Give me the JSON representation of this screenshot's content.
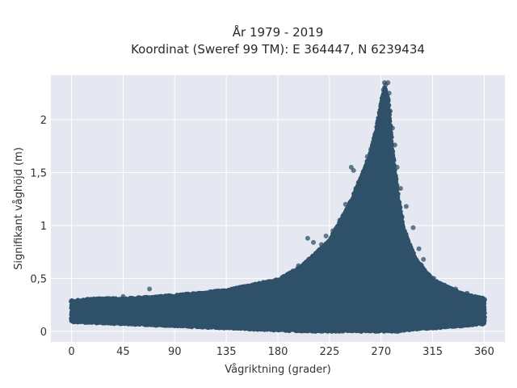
{
  "chart_data": {
    "type": "scatter",
    "title": "År 1979 - 2019",
    "subtitle": "Koordinat (Sweref 99 TM): E 364447, N 6239434",
    "xlabel": "Vågriktning (grader)",
    "ylabel": "Signifikant våghöjd (m)",
    "xlim": [
      -18,
      378
    ],
    "ylim": [
      -0.1,
      2.42
    ],
    "xticks": [
      0,
      45,
      90,
      135,
      180,
      225,
      270,
      315,
      360
    ],
    "xtick_labels": [
      "0",
      "45",
      "90",
      "135",
      "180",
      "225",
      "270",
      "315",
      "360"
    ],
    "yticks": [
      0,
      0.5,
      1,
      1.5,
      2
    ],
    "ytick_labels": [
      "0",
      "0,5",
      "1",
      "1,5",
      "2"
    ],
    "grid": true,
    "marker_color": "#2f5169",
    "background_color": "#e5e8f0",
    "series": [
      {
        "name": "",
        "envelope": {
          "x": [
            0,
            20,
            45,
            90,
            135,
            180,
            200,
            225,
            245,
            260,
            266,
            270,
            273,
            276,
            280,
            285,
            290,
            300,
            315,
            340,
            360
          ],
          "y_low": [
            0.1,
            0.09,
            0.08,
            0.06,
            0.04,
            0.02,
            0.01,
            0.01,
            0.01,
            0.01,
            0.01,
            0.01,
            0.01,
            0.01,
            0.01,
            0.01,
            0.02,
            0.03,
            0.04,
            0.06,
            0.08
          ],
          "y_high": [
            0.28,
            0.3,
            0.3,
            0.33,
            0.38,
            0.48,
            0.6,
            0.85,
            1.25,
            1.65,
            1.9,
            2.15,
            2.3,
            2.2,
            1.7,
            1.25,
            0.95,
            0.68,
            0.48,
            0.35,
            0.3
          ]
        },
        "points": [
          [
            0,
            0.28
          ],
          [
            3,
            0.26
          ],
          [
            20,
            0.3
          ],
          [
            36,
            0.31
          ],
          [
            45,
            0.33
          ],
          [
            68,
            0.4
          ],
          [
            90,
            0.33
          ],
          [
            120,
            0.35
          ],
          [
            150,
            0.42
          ],
          [
            160,
            0.4
          ],
          [
            185,
            0.5
          ],
          [
            198,
            0.62
          ],
          [
            206,
            0.88
          ],
          [
            211,
            0.84
          ],
          [
            218,
            0.82
          ],
          [
            222,
            0.9
          ],
          [
            228,
            0.95
          ],
          [
            234,
            1.05
          ],
          [
            239,
            1.2
          ],
          [
            244,
            1.55
          ],
          [
            246,
            1.52
          ],
          [
            248,
            1.35
          ],
          [
            254,
            1.36
          ],
          [
            258,
            1.65
          ],
          [
            261,
            1.72
          ],
          [
            264,
            1.62
          ],
          [
            268,
            1.96
          ],
          [
            270,
            2.08
          ],
          [
            271,
            2.15
          ],
          [
            272,
            2.28
          ],
          [
            273,
            2.35
          ],
          [
            274,
            2.33
          ],
          [
            276,
            2.35
          ],
          [
            277,
            2.25
          ],
          [
            278,
            2.08
          ],
          [
            280,
            1.92
          ],
          [
            282,
            1.76
          ],
          [
            284,
            1.55
          ],
          [
            287,
            1.35
          ],
          [
            292,
            1.18
          ],
          [
            298,
            0.98
          ],
          [
            303,
            0.78
          ],
          [
            307,
            0.68
          ],
          [
            316,
            0.5
          ],
          [
            325,
            0.42
          ],
          [
            335,
            0.4
          ],
          [
            345,
            0.36
          ],
          [
            352,
            0.33
          ],
          [
            358,
            0.3
          ]
        ]
      }
    ]
  }
}
